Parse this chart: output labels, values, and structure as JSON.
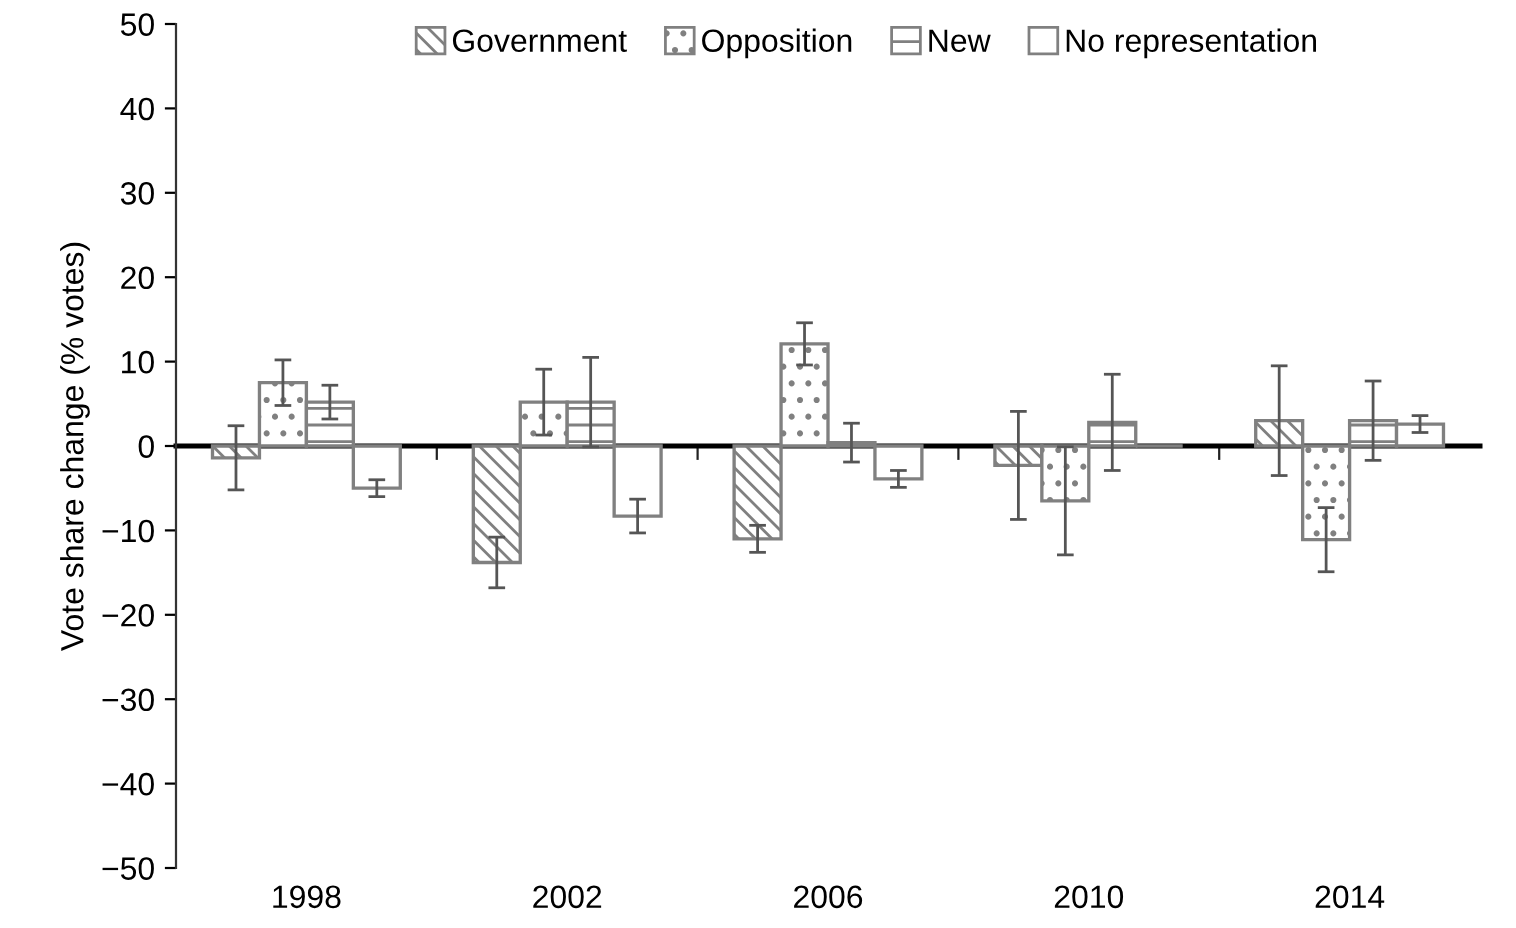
{
  "chart_data": {
    "type": "bar",
    "ylabel": "Vote share change (% votes)",
    "categories": [
      "1998",
      "2002",
      "2006",
      "2010",
      "2014"
    ],
    "series": [
      {
        "name": "Government",
        "color": "#808080",
        "values": [
          -1.4,
          -13.8,
          -11.0,
          -2.3,
          3.0
        ],
        "errors": [
          3.8,
          3.0,
          1.6,
          6.4,
          6.5
        ]
      },
      {
        "name": "Opposition",
        "color": "#808080",
        "values": [
          7.5,
          5.2,
          12.1,
          -6.5,
          -11.1
        ],
        "errors": [
          2.7,
          3.9,
          2.5,
          6.4,
          3.8
        ]
      },
      {
        "name": "New",
        "color": "#808080",
        "values": [
          5.2,
          5.2,
          0.4,
          2.8,
          3.0
        ],
        "errors": [
          2.0,
          5.3,
          2.3,
          5.7,
          4.7
        ]
      },
      {
        "name": "No representation",
        "color": "#808080",
        "values": [
          -5.0,
          -8.3,
          -3.9,
          0,
          2.6
        ],
        "errors": [
          1.0,
          2.0,
          1.0,
          null,
          1.0
        ]
      }
    ],
    "ylim": [
      -50,
      50
    ],
    "yticks": [
      {
        "value": -50,
        "label": "−50"
      },
      {
        "value": -40,
        "label": "−40"
      },
      {
        "value": -30,
        "label": "−30"
      },
      {
        "value": -20,
        "label": "−20"
      },
      {
        "value": -10,
        "label": "−10"
      },
      0,
      10,
      20,
      30,
      40,
      50
    ],
    "legend": "top"
  }
}
